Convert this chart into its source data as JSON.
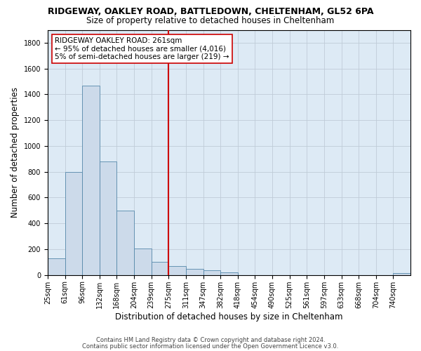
{
  "title": "RIDGEWAY, OAKLEY ROAD, BATTLEDOWN, CHELTENHAM, GL52 6PA",
  "subtitle": "Size of property relative to detached houses in Cheltenham",
  "xlabel": "Distribution of detached houses by size in Cheltenham",
  "ylabel": "Number of detached properties",
  "footer_line1": "Contains HM Land Registry data © Crown copyright and database right 2024.",
  "footer_line2": "Contains public sector information licensed under the Open Government Licence v3.0.",
  "bar_color": "#ccdaea",
  "bar_edge_color": "#5588aa",
  "bg_color": "#ddeaf5",
  "vline_color": "#cc0000",
  "vline_x_idx": 7,
  "categories": [
    "25sqm",
    "61sqm",
    "96sqm",
    "132sqm",
    "168sqm",
    "204sqm",
    "239sqm",
    "275sqm",
    "311sqm",
    "347sqm",
    "382sqm",
    "418sqm",
    "454sqm",
    "490sqm",
    "525sqm",
    "561sqm",
    "597sqm",
    "633sqm",
    "668sqm",
    "704sqm",
    "740sqm"
  ],
  "values": [
    130,
    800,
    1470,
    880,
    500,
    205,
    105,
    70,
    50,
    35,
    20,
    0,
    0,
    0,
    0,
    0,
    0,
    0,
    0,
    0,
    15
  ],
  "ylim": [
    0,
    1900
  ],
  "yticks": [
    0,
    200,
    400,
    600,
    800,
    1000,
    1200,
    1400,
    1600,
    1800
  ],
  "annotation_title": "RIDGEWAY OAKLEY ROAD: 261sqm",
  "annotation_line2": "← 95% of detached houses are smaller (4,016)",
  "annotation_line3": "5% of semi-detached houses are larger (219) →",
  "grid_color": "#c0ccd8",
  "title_fontsize": 9,
  "subtitle_fontsize": 8.5,
  "axis_label_fontsize": 8.5,
  "tick_fontsize": 7,
  "footer_fontsize": 6
}
